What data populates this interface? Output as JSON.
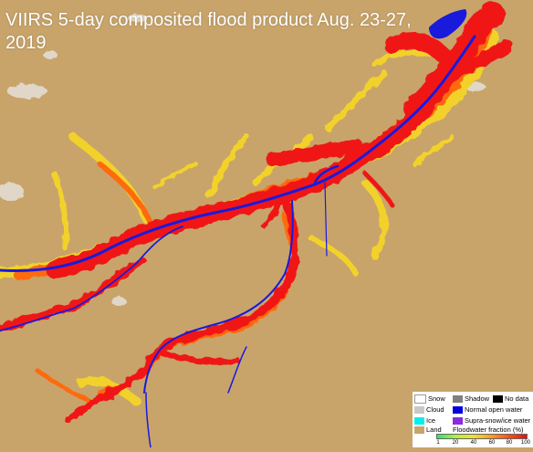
{
  "title": "VIIRS 5-day composited flood product Aug. 23-27, 2019",
  "colors": {
    "land": "#c8a46a",
    "normal_water": "#1a1adc",
    "flood_high": "#f01818",
    "flood_mid": "#ff6a10",
    "flood_low": "#f2d22a",
    "cloud": "#e6e6e6"
  },
  "legend": {
    "items": [
      {
        "label": "Snow",
        "color": "#ffffff"
      },
      {
        "label": "Shadow",
        "color": "#808080"
      },
      {
        "label": "No data",
        "color": "#000000"
      },
      {
        "label": "Cloud",
        "color": "#c8c8c8"
      },
      {
        "label": "Normal open water",
        "color": "#0000dc"
      },
      {
        "label": "Ice",
        "color": "#00f0f0"
      },
      {
        "label": "Supra-snow/ice water",
        "color": "#8a2be2"
      },
      {
        "label": "Land",
        "color": "#c8a46a"
      }
    ],
    "ramp_title": "Floodwater fraction (%)",
    "ramp_ticks": [
      "1",
      "20",
      "40",
      "60",
      "80",
      "100"
    ]
  }
}
